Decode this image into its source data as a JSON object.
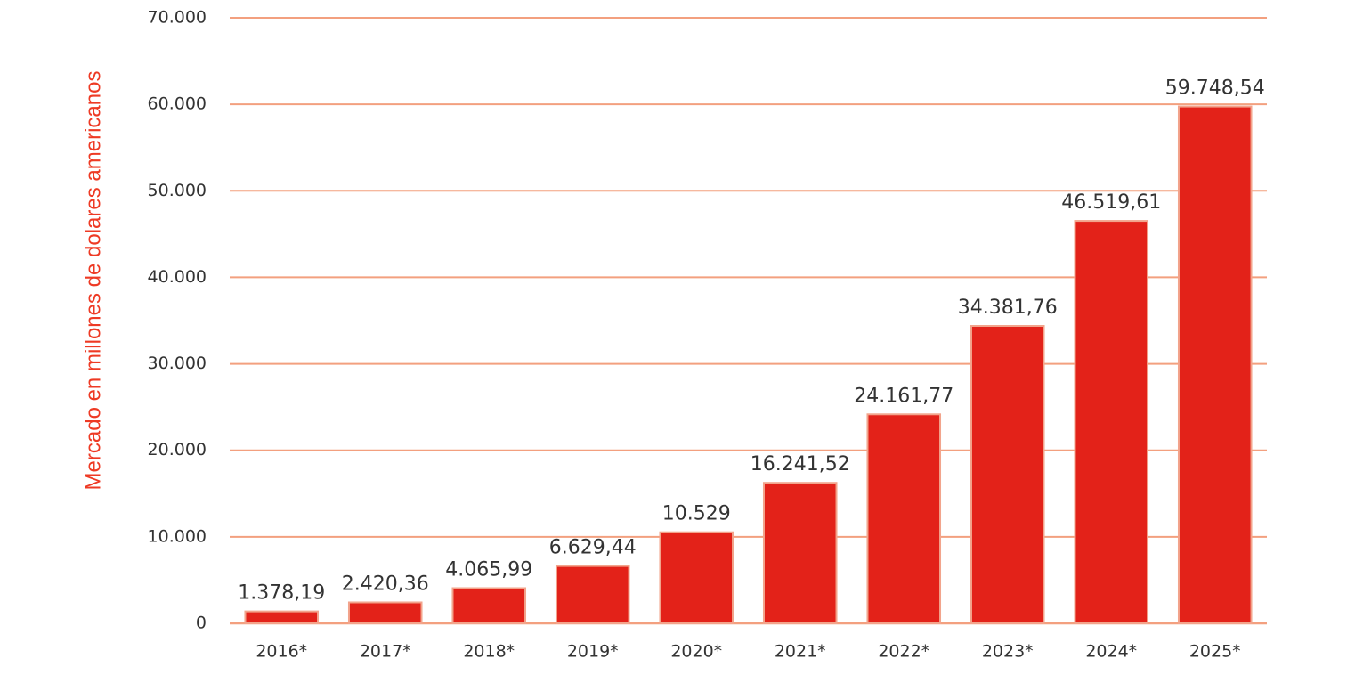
{
  "chart_data": {
    "type": "bar",
    "categories": [
      "2016*",
      "2017*",
      "2018*",
      "2019*",
      "2020*",
      "2021*",
      "2022*",
      "2023*",
      "2024*",
      "2025*"
    ],
    "values": [
      1378.19,
      2420.36,
      4065.99,
      6629.44,
      10529,
      16241.52,
      24161.77,
      34381.76,
      46519.61,
      59748.54
    ],
    "value_labels": [
      "1.378,19",
      "2.420,36",
      "4.065,99",
      "6.629,44",
      "10.529",
      "16.241,52",
      "24.161,77",
      "34.381,76",
      "46.519,61",
      "59.748,54"
    ],
    "ylabel": "Mercado en millones de dolares americanos",
    "ylim": [
      0,
      70000
    ],
    "yticks": [
      0,
      10000,
      20000,
      30000,
      40000,
      50000,
      60000,
      70000
    ],
    "ytick_labels": [
      "0",
      "10.000",
      "20.000",
      "30.000",
      "40.000",
      "50.000",
      "60.000",
      "70.000"
    ],
    "grid": true,
    "colors": {
      "bar": "#e32219",
      "bar_edge": "#f2a48c",
      "grid": "#f3a07f",
      "ylabel": "#ee3a24",
      "text": "#333333"
    }
  }
}
